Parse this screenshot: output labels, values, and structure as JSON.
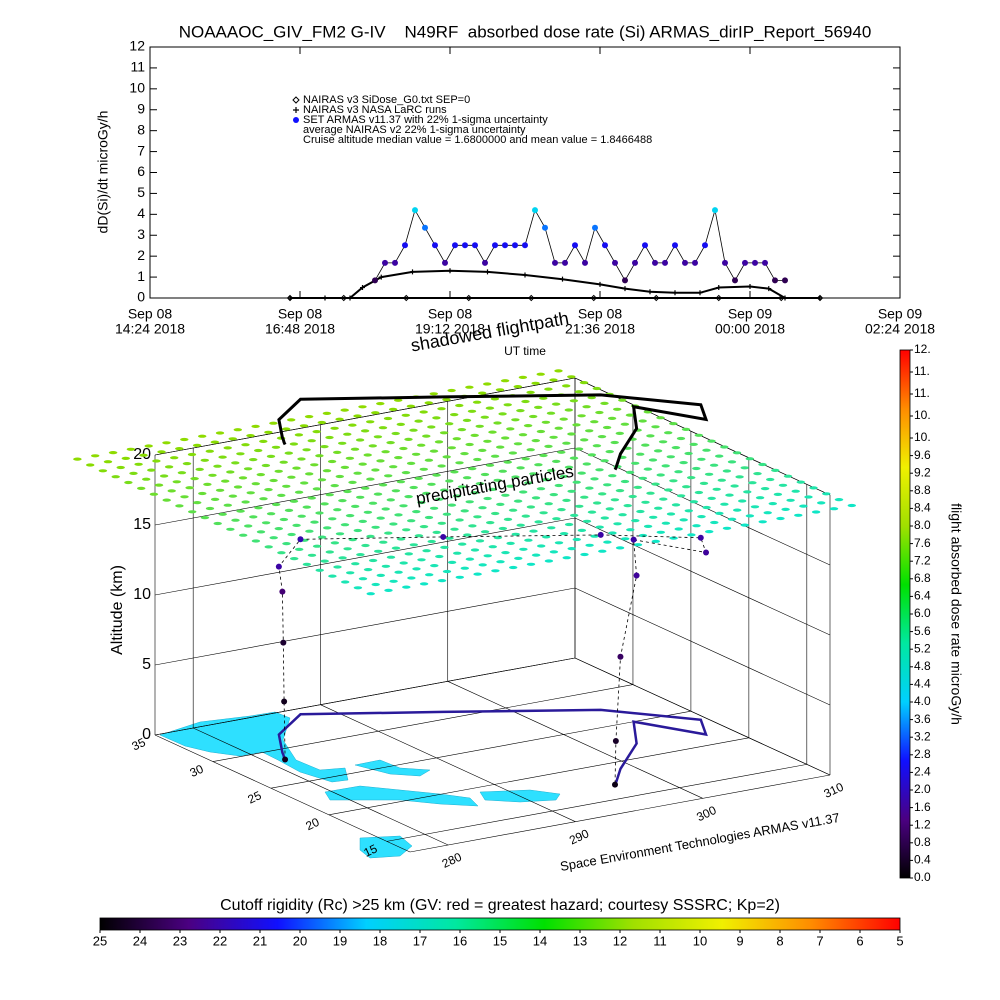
{
  "chart_data": [
    {
      "type": "line",
      "title": "NOAAAOC_GIV_FM2 G-IV    N49RF  absorbed dose rate (Si) ARMAS_dirIP_Report_56940",
      "ylabel": "dD(Si)/dt microGy/h",
      "xlabel": "UT time",
      "xlim": [
        14.4,
        26.4
      ],
      "xticks": [
        {
          "value": 14.4,
          "label": [
            "Sep 08",
            "14:24 2018"
          ]
        },
        {
          "value": 16.8,
          "label": [
            "Sep 08",
            "16:48 2018"
          ]
        },
        {
          "value": 19.2,
          "label": [
            "Sep 08",
            "19:12 2018"
          ]
        },
        {
          "value": 21.6,
          "label": [
            "Sep 08",
            "21:36 2018"
          ]
        },
        {
          "value": 24.0,
          "label": [
            "Sep 09",
            "00:00 2018"
          ]
        },
        {
          "value": 26.4,
          "label": [
            "Sep 09",
            "02:24 2018"
          ]
        }
      ],
      "ylim": [
        0,
        12
      ],
      "yticks": [
        0,
        1,
        2,
        3,
        4,
        5,
        6,
        7,
        8,
        9,
        10,
        11,
        12
      ],
      "series": [
        {
          "name": "NAIRAS v3 SiDose_G0.txt SEP=0",
          "color": "#000000",
          "marker": "diamond",
          "x": [
            16.64,
            17.5,
            18.5,
            19.5,
            20.5,
            21.5,
            22.5,
            23.5,
            24.5,
            25.12
          ],
          "values": [
            0,
            0,
            0,
            0,
            0,
            0,
            0,
            0,
            0,
            0
          ]
        },
        {
          "name": "NAIRAS v3 NASA LaRC runs",
          "color": "#000000",
          "marker": "plus",
          "x": [
            16.64,
            17.2,
            17.6,
            17.8,
            18.1,
            18.6,
            19.2,
            19.8,
            20.4,
            21.0,
            21.6,
            22.0,
            22.4,
            22.8,
            23.2,
            23.5,
            24.0,
            24.3,
            24.56,
            25.12
          ],
          "values": [
            0,
            0,
            0,
            0.5,
            1.0,
            1.25,
            1.3,
            1.25,
            1.1,
            0.9,
            0.65,
            0.45,
            0.3,
            0.25,
            0.25,
            0.5,
            0.55,
            0.45,
            0,
            0
          ]
        },
        {
          "name": "SET ARMAS v11.37 with 22% 1-sigma uncertainty",
          "color": "#1010ff",
          "marker": "circle",
          "color_by_value": true,
          "x": [
            18.0,
            18.16,
            18.32,
            18.48,
            18.64,
            18.8,
            18.96,
            19.12,
            19.28,
            19.44,
            19.6,
            19.76,
            19.92,
            20.08,
            20.24,
            20.4,
            20.56,
            20.72,
            20.88,
            21.04,
            21.2,
            21.36,
            21.52,
            21.68,
            21.84,
            22.0,
            22.16,
            22.32,
            22.48,
            22.64,
            22.8,
            22.96,
            23.12,
            23.28,
            23.44,
            23.6,
            23.76,
            23.92,
            24.08,
            24.24,
            24.4,
            24.56
          ],
          "values": [
            0.84,
            1.68,
            1.68,
            2.52,
            4.2,
            3.36,
            2.52,
            1.68,
            2.52,
            2.52,
            2.52,
            1.68,
            2.52,
            2.52,
            2.52,
            2.52,
            4.2,
            3.36,
            1.68,
            1.68,
            2.52,
            1.68,
            3.36,
            2.52,
            1.68,
            0.84,
            1.68,
            2.52,
            1.68,
            1.68,
            2.52,
            1.68,
            1.68,
            2.52,
            4.2,
            1.68,
            0.84,
            1.68,
            1.68,
            1.68,
            0.84,
            0.84
          ]
        }
      ],
      "annotations": [
        "average NAIRAS v2 22% 1-sigma uncertainty",
        "Cruise altitude median value = 1.6800000 and mean value = 1.8466488"
      ]
    },
    {
      "type": "scatter3d",
      "zlabel": "Altitude (km)",
      "xlim": [
        277,
        310
      ],
      "xticks": [
        280,
        290,
        300,
        310
      ],
      "ylim": [
        13,
        35
      ],
      "yticks": [
        15,
        20,
        25,
        30,
        35
      ],
      "zlim": [
        0,
        20
      ],
      "zticks": [
        0,
        5,
        10,
        15,
        20
      ],
      "annotations": [
        "shadowed flightpath",
        "precipitating particles",
        "Space Environment Technologies ARMAS v11.37"
      ],
      "track_color": "#2a1a9a",
      "lon": [
        281.3,
        281.5,
        281.8,
        282.0,
        284.0,
        287.7,
        296.0,
        305.1,
        309.5,
        308.0,
        305.5,
        303.0,
        299.0,
        297.0,
        296.75
      ],
      "lat": [
        28.5,
        28.8,
        29.2,
        29.5,
        32.0,
        34.2,
        31.0,
        27.4,
        23.6,
        21.5,
        25.0,
        22.0,
        19.0,
        17.2,
        17.0
      ],
      "alt": [
        0,
        4,
        8,
        11.5,
        12,
        12.5,
        12.5,
        12.5,
        13,
        13,
        13,
        12,
        8,
        3,
        0
      ],
      "dose": [
        0.3,
        0.3,
        0.5,
        1.2,
        1.7,
        1.8,
        1.7,
        1.7,
        1.7,
        1.6,
        1.7,
        1.6,
        1.0,
        0.4,
        0.2
      ]
    },
    {
      "type": "colorbar",
      "label": "flight absorbed dose rate microGy/h",
      "ylim": [
        0,
        12
      ],
      "colors": [
        "#000000",
        "#4b0082",
        "#1010ff",
        "#00d0ff",
        "#00e8a0",
        "#00e000",
        "#a0e000",
        "#f0f000",
        "#ff8c00",
        "#ff0000"
      ],
      "ticks": [
        {
          "value": 0,
          "label": "0.0"
        },
        0.4,
        0.8,
        1.2,
        1.6,
        {
          "value": 2,
          "label": "2.0"
        },
        2.4,
        2.8,
        3.2,
        3.6,
        {
          "value": 4,
          "label": "4.0"
        },
        4.4,
        4.8,
        5.2,
        5.6,
        {
          "value": 6,
          "label": "6.0"
        },
        6.4,
        6.8,
        7.2,
        7.6,
        {
          "value": 8,
          "label": "8.0"
        },
        8.4,
        8.8,
        9.2,
        9.6,
        {
          "value": 10.0,
          "label": "10."
        },
        {
          "value": 10.5,
          "label": "10."
        },
        {
          "value": 11.0,
          "label": "11."
        },
        {
          "value": 11.5,
          "label": "11."
        },
        {
          "value": 12.0,
          "label": "12."
        }
      ]
    },
    {
      "type": "colorbar",
      "title": "Cutoff rigidity (Rc) >25 km (GV: red = greatest hazard; courtesy SSSRC; Kp=2)",
      "xlim": [
        25,
        5
      ],
      "colors": [
        "#000000",
        "#4b0082",
        "#1010ff",
        "#00d0ff",
        "#00e8a0",
        "#00e000",
        "#a0e000",
        "#f0f000",
        "#ff8c00",
        "#ff0000"
      ],
      "ticks": [
        25,
        24,
        23,
        22,
        21,
        20,
        19,
        18,
        17,
        16,
        15,
        14,
        13,
        12,
        11,
        10,
        9,
        8,
        7,
        6,
        5
      ]
    }
  ]
}
